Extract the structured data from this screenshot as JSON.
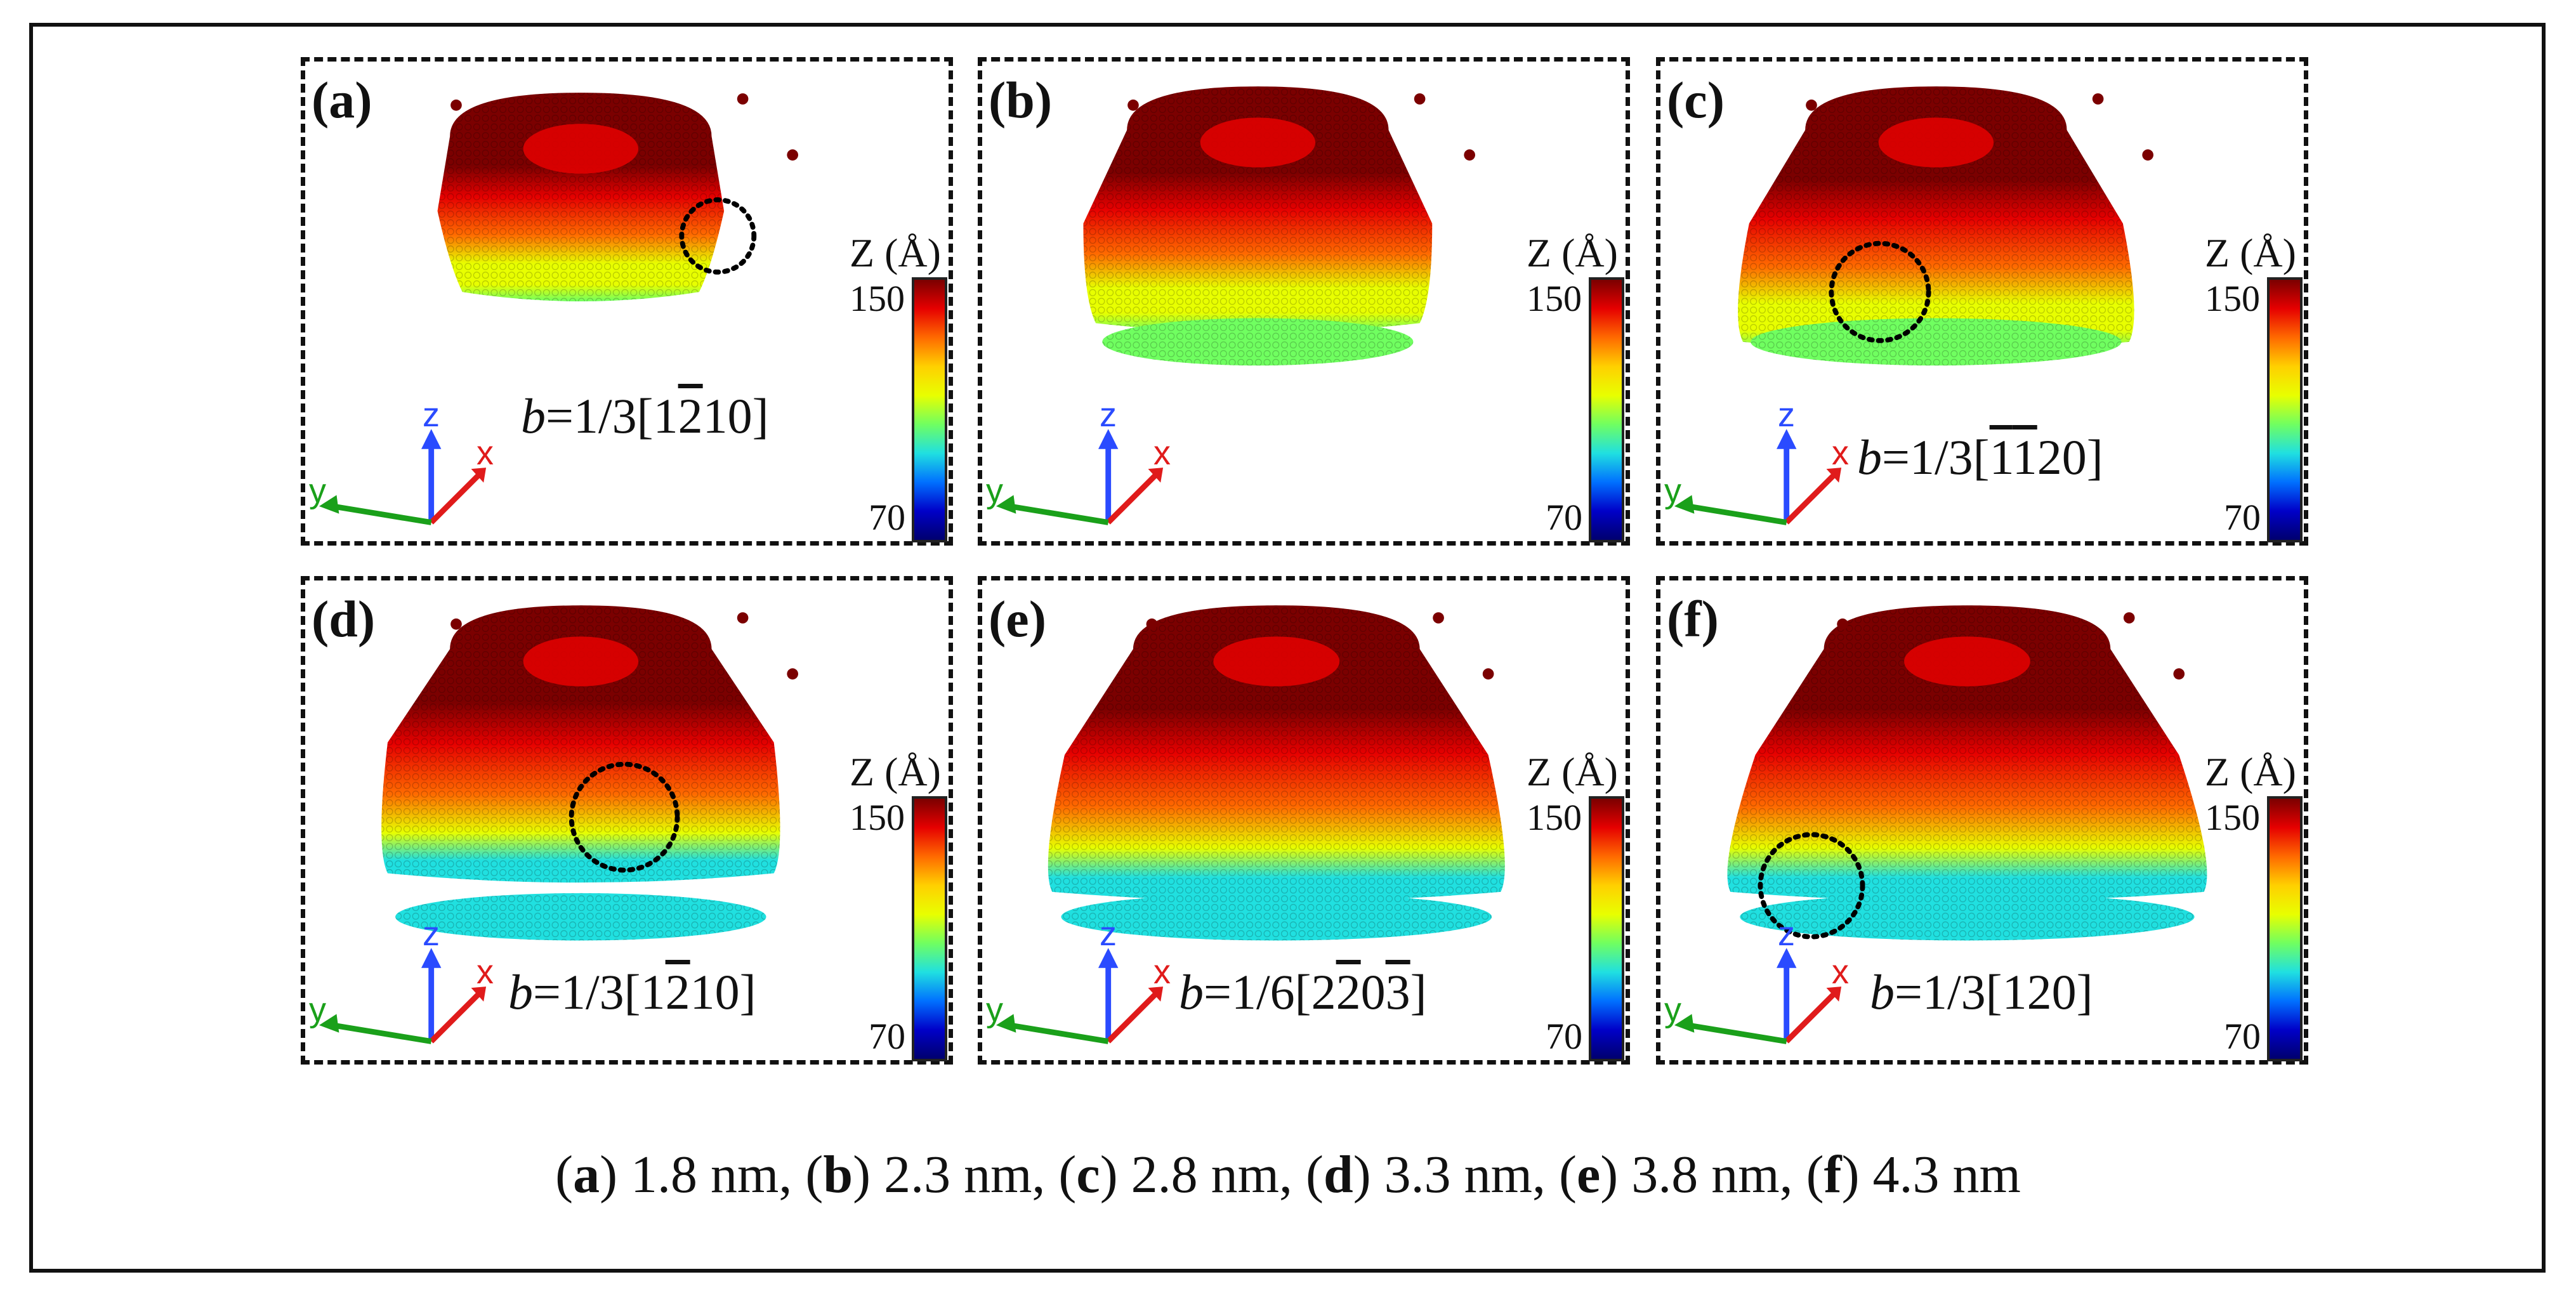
{
  "figure": {
    "panels": [
      {
        "id": "a",
        "label": "(a)",
        "b_prefix": "b",
        "b_text_pre": "=1/3[1",
        "b_bar": "2",
        "b_text_post": "10]"
      },
      {
        "id": "b",
        "label": "(b)",
        "b_prefix": "",
        "b_text_pre": "",
        "b_bar": "",
        "b_text_post": ""
      },
      {
        "id": "c",
        "label": "(c)",
        "b_prefix": "b",
        "b_text_pre": "=1/3[",
        "b_bar": "1",
        "b_bar2": "1",
        "b_text_post": "20]"
      },
      {
        "id": "d",
        "label": "(d)",
        "b_prefix": "b",
        "b_text_pre": "=1/3[1",
        "b_bar": "2",
        "b_text_post": "10]"
      },
      {
        "id": "e",
        "label": "(e)",
        "b_prefix": "b",
        "b_text_pre": "=1/6[2",
        "b_bar": "2",
        "b_mid": "0",
        "b_bar2": "3",
        "b_text_post": "]"
      },
      {
        "id": "f",
        "label": "(f)",
        "b_prefix": "b",
        "b_text_pre": "=1/3[120]",
        "b_bar": "",
        "b_text_post": ""
      }
    ],
    "colorbar": {
      "title": "Z (Å)",
      "max": "150",
      "min": "70",
      "colors": [
        "#7b0000",
        "#e60000",
        "#ff6a00",
        "#ffd000",
        "#e8ff00",
        "#70ff60",
        "#20e0e0",
        "#0070ff",
        "#0000c8",
        "#00006e"
      ]
    },
    "axes": {
      "z": "z",
      "x": "x",
      "y": "y",
      "z_color": "#2a4bff",
      "x_color": "#e01b1b",
      "y_color": "#1aa01a"
    },
    "caption": {
      "items": [
        {
          "label": "a",
          "value": "1.8 nm"
        },
        {
          "label": "b",
          "value": "2.3 nm"
        },
        {
          "label": "c",
          "value": "2.8 nm"
        },
        {
          "label": "d",
          "value": "3.3 nm"
        },
        {
          "label": "e",
          "value": "3.8 nm"
        },
        {
          "label": "f",
          "value": "4.3 nm"
        }
      ]
    }
  }
}
